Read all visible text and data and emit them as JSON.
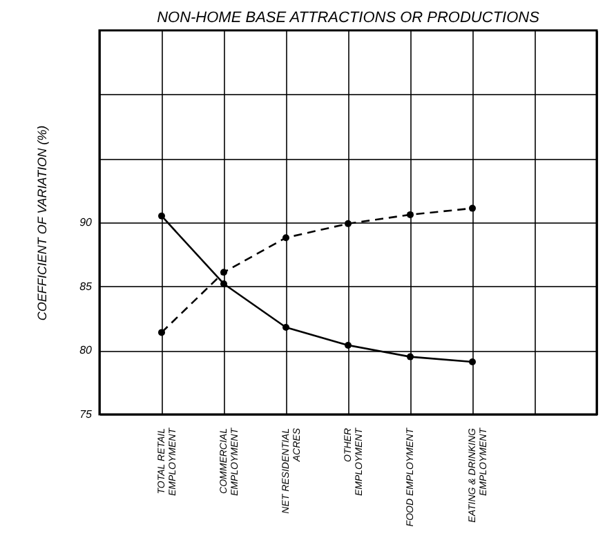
{
  "chart_data": {
    "type": "line",
    "title": "NON-HOME BASE ATTRACTIONS OR PRODUCTIONS",
    "ylabel": "COEFFICIENT OF VARIATION (%)",
    "categories": [
      "TOTAL RETAIL\nEMPLOYMENT",
      "COMMERCIAL\nEMPLOYMENT",
      "NET RESIDENTIAL\nACRES",
      "OTHER\nEMPLOYMENT",
      "FOOD EMPLOYMENT",
      "EATING & DRINKING\nEMPLOYMENT"
    ],
    "series": [
      {
        "color": "#000000",
        "line_style": "solid",
        "values": [
          90.5,
          85.2,
          81.8,
          80.4,
          79.5,
          79.1
        ]
      },
      {
        "color": "#000000",
        "line_style": "dashed",
        "values": [
          81.4,
          86.1,
          88.8,
          89.9,
          90.6,
          91.1
        ]
      }
    ],
    "ylim": [
      75,
      105
    ],
    "yticks": [
      75,
      80,
      85,
      90,
      {
        "value": 95,
        "label": null
      },
      {
        "value": 100,
        "label": null
      }
    ],
    "grid": true,
    "marker": "circle"
  }
}
